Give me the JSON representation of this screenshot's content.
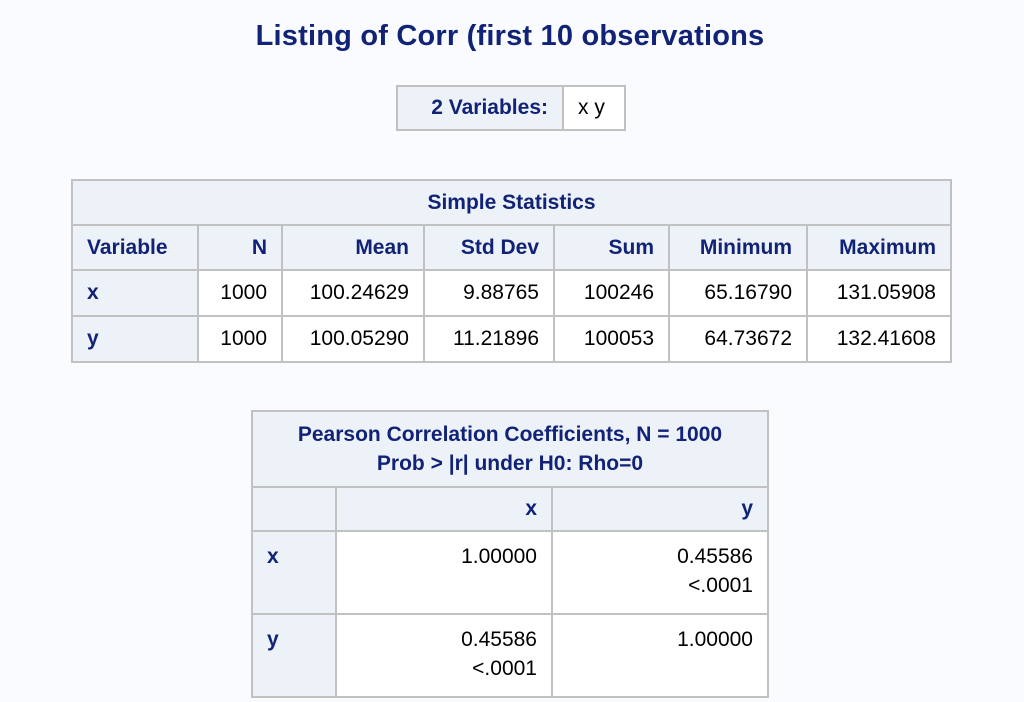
{
  "title": "Listing of Corr (first 10 observations",
  "variables": {
    "label": "2 Variables:",
    "value": "x y"
  },
  "simple_stats": {
    "caption": "Simple Statistics",
    "headers": [
      "Variable",
      "N",
      "Mean",
      "Std Dev",
      "Sum",
      "Minimum",
      "Maximum"
    ],
    "rows": [
      [
        "x",
        "1000",
        "100.24629",
        "9.88765",
        "100246",
        "65.16790",
        "131.05908"
      ],
      [
        "y",
        "1000",
        "100.05290",
        "11.21896",
        "100053",
        "64.73672",
        "132.41608"
      ]
    ]
  },
  "pearson": {
    "caption_line1": "Pearson Correlation Coefficients, N = 1000",
    "caption_line2": "Prob > |r| under H0: Rho=0",
    "col_headers": [
      "",
      "x",
      "y"
    ],
    "rows": [
      {
        "label": "x",
        "cells": [
          {
            "coef": "1.00000",
            "prob": ""
          },
          {
            "coef": "0.45586",
            "prob": "<.0001"
          }
        ]
      },
      {
        "label": "y",
        "cells": [
          {
            "coef": "0.45586",
            "prob": "<.0001"
          },
          {
            "coef": "1.00000",
            "prob": ""
          }
        ]
      }
    ]
  }
}
